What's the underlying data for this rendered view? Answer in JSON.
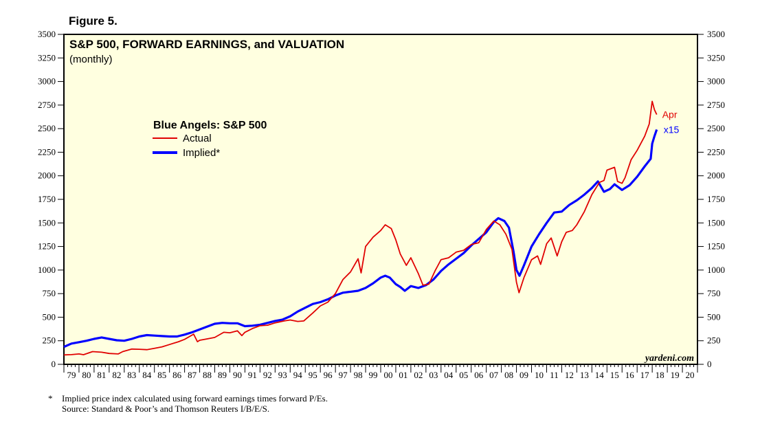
{
  "figure_label": "Figure 5.",
  "footnote": {
    "star": "*",
    "line1": "Implied price index calculated using forward earnings times forward P/Es.",
    "line2": "Source: Standard & Poor’s and Thomson Reuters I/B/E/S."
  },
  "chart_data": {
    "type": "line",
    "title": "S&P 500, FORWARD EARNINGS, and VALUATION",
    "subtitle": "(monthly)",
    "legend_title": "Blue Angels: S&P 500",
    "legend_placement": "upper-left",
    "watermark": "yardeni.com",
    "ylim": [
      0,
      3500
    ],
    "y_ticks": [
      0,
      250,
      500,
      750,
      1000,
      1250,
      1500,
      1750,
      2000,
      2250,
      2500,
      2750,
      3000,
      3250,
      3500
    ],
    "y_tick_labels": [
      "0",
      "250",
      "500",
      "750",
      "1000",
      "1250",
      "1500",
      "1750",
      "2000",
      "2250",
      "2500",
      "2750",
      "3000",
      "3250",
      "3500"
    ],
    "x_range": [
      1979,
      2021
    ],
    "x_tick_labels": [
      "79",
      "80",
      "81",
      "82",
      "83",
      "84",
      "85",
      "86",
      "87",
      "88",
      "89",
      "90",
      "91",
      "92",
      "93",
      "94",
      "95",
      "96",
      "97",
      "98",
      "99",
      "00",
      "01",
      "02",
      "03",
      "04",
      "05",
      "06",
      "07",
      "08",
      "09",
      "10",
      "11",
      "12",
      "13",
      "14",
      "15",
      "16",
      "17",
      "18",
      "19",
      "20"
    ],
    "series": [
      {
        "name": "Actual",
        "color": "#e00000",
        "end_label": "Apr",
        "points": [
          [
            1979.0,
            100
          ],
          [
            1979.5,
            103
          ],
          [
            1980.0,
            110
          ],
          [
            1980.3,
            102
          ],
          [
            1980.9,
            135
          ],
          [
            1981.5,
            128
          ],
          [
            1982.0,
            115
          ],
          [
            1982.6,
            110
          ],
          [
            1982.9,
            135
          ],
          [
            1983.5,
            162
          ],
          [
            1984.0,
            160
          ],
          [
            1984.5,
            155
          ],
          [
            1985.0,
            170
          ],
          [
            1985.5,
            185
          ],
          [
            1986.0,
            210
          ],
          [
            1986.6,
            240
          ],
          [
            1987.0,
            265
          ],
          [
            1987.6,
            320
          ],
          [
            1987.85,
            240
          ],
          [
            1988.0,
            255
          ],
          [
            1988.5,
            270
          ],
          [
            1989.0,
            285
          ],
          [
            1989.6,
            340
          ],
          [
            1990.0,
            335
          ],
          [
            1990.5,
            355
          ],
          [
            1990.8,
            305
          ],
          [
            1991.0,
            340
          ],
          [
            1991.5,
            380
          ],
          [
            1992.0,
            410
          ],
          [
            1992.5,
            415
          ],
          [
            1993.0,
            440
          ],
          [
            1993.6,
            460
          ],
          [
            1994.0,
            470
          ],
          [
            1994.5,
            455
          ],
          [
            1994.9,
            460
          ],
          [
            1995.5,
            545
          ],
          [
            1996.0,
            620
          ],
          [
            1996.5,
            660
          ],
          [
            1997.0,
            750
          ],
          [
            1997.5,
            900
          ],
          [
            1998.0,
            980
          ],
          [
            1998.5,
            1120
          ],
          [
            1998.7,
            970
          ],
          [
            1999.0,
            1250
          ],
          [
            1999.5,
            1350
          ],
          [
            2000.0,
            1420
          ],
          [
            2000.3,
            1480
          ],
          [
            2000.7,
            1440
          ],
          [
            2001.0,
            1320
          ],
          [
            2001.3,
            1170
          ],
          [
            2001.7,
            1050
          ],
          [
            2002.0,
            1130
          ],
          [
            2002.5,
            960
          ],
          [
            2002.8,
            840
          ],
          [
            2003.2,
            850
          ],
          [
            2003.6,
            990
          ],
          [
            2004.0,
            1110
          ],
          [
            2004.5,
            1130
          ],
          [
            2005.0,
            1190
          ],
          [
            2005.5,
            1210
          ],
          [
            2006.0,
            1270
          ],
          [
            2006.5,
            1290
          ],
          [
            2007.0,
            1430
          ],
          [
            2007.5,
            1520
          ],
          [
            2007.9,
            1480
          ],
          [
            2008.3,
            1380
          ],
          [
            2008.7,
            1220
          ],
          [
            2009.0,
            870
          ],
          [
            2009.17,
            760
          ],
          [
            2009.5,
            920
          ],
          [
            2010.0,
            1110
          ],
          [
            2010.4,
            1150
          ],
          [
            2010.6,
            1060
          ],
          [
            2011.0,
            1280
          ],
          [
            2011.3,
            1340
          ],
          [
            2011.7,
            1150
          ],
          [
            2012.0,
            1300
          ],
          [
            2012.3,
            1400
          ],
          [
            2012.7,
            1420
          ],
          [
            2013.0,
            1480
          ],
          [
            2013.5,
            1620
          ],
          [
            2014.0,
            1800
          ],
          [
            2014.5,
            1930
          ],
          [
            2014.8,
            1950
          ],
          [
            2015.0,
            2060
          ],
          [
            2015.5,
            2090
          ],
          [
            2015.7,
            1940
          ],
          [
            2016.0,
            1920
          ],
          [
            2016.2,
            1980
          ],
          [
            2016.6,
            2170
          ],
          [
            2017.0,
            2270
          ],
          [
            2017.5,
            2420
          ],
          [
            2017.8,
            2550
          ],
          [
            2018.0,
            2790
          ],
          [
            2018.15,
            2700
          ],
          [
            2018.3,
            2650
          ]
        ]
      },
      {
        "name": "Implied*",
        "color": "#0000ff",
        "end_label": "x15",
        "points": [
          [
            1979.0,
            185
          ],
          [
            1979.5,
            220
          ],
          [
            1980.0,
            235
          ],
          [
            1980.5,
            250
          ],
          [
            1981.0,
            270
          ],
          [
            1981.5,
            285
          ],
          [
            1982.0,
            270
          ],
          [
            1982.5,
            255
          ],
          [
            1983.0,
            250
          ],
          [
            1983.5,
            270
          ],
          [
            1984.0,
            295
          ],
          [
            1984.5,
            310
          ],
          [
            1985.0,
            305
          ],
          [
            1985.5,
            300
          ],
          [
            1986.0,
            295
          ],
          [
            1986.5,
            295
          ],
          [
            1987.0,
            315
          ],
          [
            1987.5,
            340
          ],
          [
            1988.0,
            370
          ],
          [
            1988.5,
            400
          ],
          [
            1989.0,
            430
          ],
          [
            1989.5,
            440
          ],
          [
            1990.0,
            435
          ],
          [
            1990.5,
            435
          ],
          [
            1991.0,
            405
          ],
          [
            1991.5,
            410
          ],
          [
            1992.0,
            420
          ],
          [
            1992.5,
            440
          ],
          [
            1993.0,
            460
          ],
          [
            1993.5,
            475
          ],
          [
            1994.0,
            510
          ],
          [
            1994.5,
            560
          ],
          [
            1995.0,
            600
          ],
          [
            1995.5,
            640
          ],
          [
            1996.0,
            660
          ],
          [
            1996.5,
            690
          ],
          [
            1997.0,
            730
          ],
          [
            1997.5,
            760
          ],
          [
            1998.0,
            770
          ],
          [
            1998.5,
            780
          ],
          [
            1999.0,
            810
          ],
          [
            1999.5,
            860
          ],
          [
            2000.0,
            920
          ],
          [
            2000.3,
            940
          ],
          [
            2000.6,
            920
          ],
          [
            2001.0,
            850
          ],
          [
            2001.3,
            820
          ],
          [
            2001.6,
            780
          ],
          [
            2002.0,
            830
          ],
          [
            2002.5,
            810
          ],
          [
            2003.0,
            840
          ],
          [
            2003.5,
            900
          ],
          [
            2004.0,
            990
          ],
          [
            2004.5,
            1060
          ],
          [
            2005.0,
            1120
          ],
          [
            2005.5,
            1180
          ],
          [
            2006.0,
            1260
          ],
          [
            2006.5,
            1330
          ],
          [
            2007.0,
            1400
          ],
          [
            2007.5,
            1510
          ],
          [
            2007.8,
            1550
          ],
          [
            2008.2,
            1520
          ],
          [
            2008.5,
            1450
          ],
          [
            2008.8,
            1200
          ],
          [
            2009.0,
            1000
          ],
          [
            2009.2,
            940
          ],
          [
            2009.5,
            1050
          ],
          [
            2010.0,
            1250
          ],
          [
            2010.5,
            1380
          ],
          [
            2011.0,
            1500
          ],
          [
            2011.5,
            1610
          ],
          [
            2012.0,
            1620
          ],
          [
            2012.5,
            1690
          ],
          [
            2013.0,
            1740
          ],
          [
            2013.5,
            1800
          ],
          [
            2014.0,
            1870
          ],
          [
            2014.4,
            1940
          ],
          [
            2014.8,
            1830
          ],
          [
            2015.2,
            1860
          ],
          [
            2015.5,
            1910
          ],
          [
            2016.0,
            1850
          ],
          [
            2016.5,
            1900
          ],
          [
            2017.0,
            1990
          ],
          [
            2017.5,
            2100
          ],
          [
            2017.9,
            2180
          ],
          [
            2018.0,
            2340
          ],
          [
            2018.15,
            2420
          ],
          [
            2018.3,
            2490
          ]
        ]
      }
    ]
  }
}
